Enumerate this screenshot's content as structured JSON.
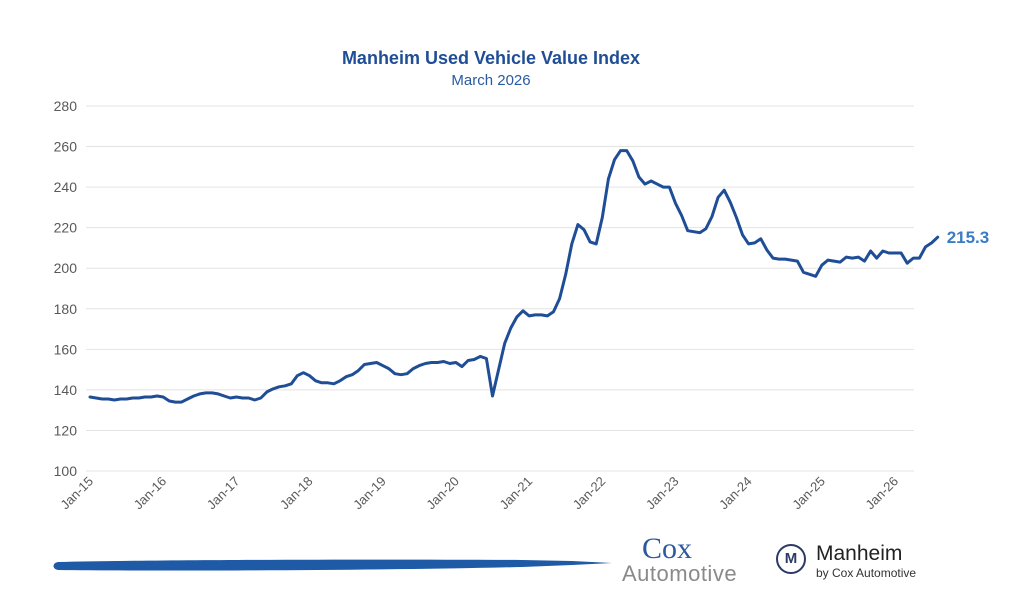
{
  "chart_data": {
    "type": "line",
    "title": "Manheim Used Vehicle Value Index",
    "subtitle": "March 2026",
    "xlabel": "",
    "ylabel": "",
    "ylim": [
      100,
      280
    ],
    "yticks": [
      100,
      120,
      140,
      160,
      180,
      200,
      220,
      240,
      260,
      280
    ],
    "xtick_labels": [
      "Jan-15",
      "Jan-16",
      "Jan-17",
      "Jan-18",
      "Jan-19",
      "Jan-20",
      "Jan-21",
      "Jan-22",
      "Jan-23",
      "Jan-24",
      "Jan-25",
      "Jan-26"
    ],
    "grid": true,
    "legend": "none",
    "x_start": "Jan-15",
    "x_frequency": "monthly",
    "series": [
      {
        "name": "Manheim Used Vehicle Value Index",
        "color": "#1f4e96",
        "values": [
          136.5,
          136,
          135.5,
          135.5,
          135,
          135.5,
          135.5,
          136,
          136,
          136.5,
          136.5,
          137,
          136.5,
          134.5,
          134,
          134,
          135.5,
          137,
          138,
          138.5,
          138.5,
          138,
          137,
          136,
          136.5,
          136,
          136,
          135,
          136,
          139,
          140.5,
          141.5,
          142,
          143,
          147,
          148.5,
          147,
          144.5,
          143.5,
          143.5,
          143,
          144.5,
          146.5,
          147.5,
          149.5,
          152.5,
          153,
          153.5,
          152,
          150.5,
          148,
          147.5,
          148,
          150.5,
          152,
          153,
          153.5,
          153.5,
          154,
          153,
          153.5,
          151.5,
          154.5,
          155,
          156.5,
          155.5,
          137,
          150,
          163,
          170.5,
          176,
          179,
          176.5,
          177,
          177,
          176.5,
          178.5,
          185,
          197,
          212,
          221.5,
          219,
          213,
          212,
          225,
          244,
          253.5,
          258,
          258,
          253,
          245,
          241.5,
          243,
          241.5,
          240,
          240,
          232,
          226,
          218.5,
          218,
          217.5,
          219.5,
          225.5,
          235,
          238.5,
          232.5,
          225,
          216.5,
          212,
          212.5,
          214.5,
          209,
          205,
          204.5,
          204.5,
          204,
          203.5,
          198,
          197,
          196,
          201.5,
          204,
          203.5,
          203,
          205.5,
          205,
          205.5,
          203.5,
          208.5,
          205,
          208.5,
          207.5,
          207.5,
          207.5,
          202.5,
          205,
          205,
          210.5,
          212.5,
          215.3
        ]
      }
    ],
    "annotations": [
      {
        "text": "215.3",
        "target": "last-point",
        "color": "#3a7cc4"
      }
    ]
  },
  "footer": {
    "cox_word": "Cox",
    "cox_automotive_word": "Automotive",
    "manheim_badge_letter": "M",
    "manheim_name": "Manheim",
    "manheim_byline": "by Cox Automotive"
  }
}
